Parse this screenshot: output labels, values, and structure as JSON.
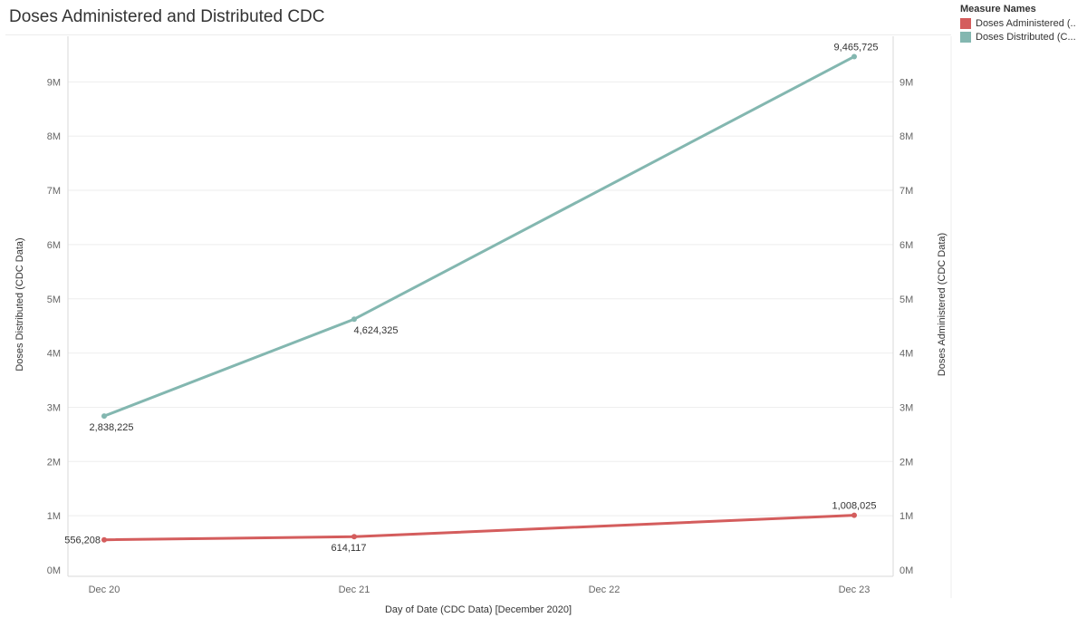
{
  "title": "Doses Administered and Distributed CDC",
  "legend": {
    "title": "Measure Names",
    "items": [
      {
        "label": "Doses Administered (...",
        "color": "#d45d5d"
      },
      {
        "label": "Doses Distributed (C...",
        "color": "#83b7b0"
      }
    ]
  },
  "chart_data": {
    "type": "line",
    "title": "Doses Administered and Distributed CDC",
    "xlabel": "Day of Date (CDC Data) [December 2020]",
    "ylabel_left": "Doses Distributed (CDC Data)",
    "ylabel_right": "Doses Administered (CDC Data)",
    "categories": [
      "Dec 20",
      "Dec 21",
      "Dec 22",
      "Dec 23"
    ],
    "x": [
      0,
      1,
      3
    ],
    "ylim": [
      0,
      9500000
    ],
    "yticks": [
      0,
      1000000,
      2000000,
      3000000,
      4000000,
      5000000,
      6000000,
      7000000,
      8000000,
      9000000
    ],
    "ytick_labels": [
      "0M",
      "1M",
      "2M",
      "3M",
      "4M",
      "5M",
      "6M",
      "7M",
      "8M",
      "9M"
    ],
    "grid": true,
    "legend_position": "top-right",
    "series": [
      {
        "name": "Doses Distributed (CDC Data)",
        "color": "#83b7b0",
        "axis": "left",
        "values": [
          2838225,
          4624325,
          9465725
        ],
        "labels": [
          "2,838,225",
          "4,624,325",
          "9,465,725"
        ]
      },
      {
        "name": "Doses Administered (CDC Data)",
        "color": "#d45d5d",
        "axis": "right",
        "values": [
          556208,
          614117,
          1008025
        ],
        "labels": [
          "556,208",
          "614,117",
          "1,008,025"
        ]
      }
    ]
  }
}
